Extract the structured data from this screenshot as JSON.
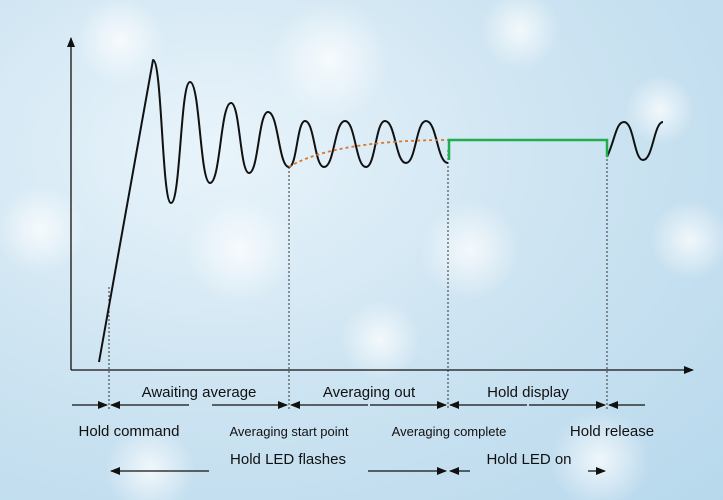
{
  "phases": {
    "awaiting_average": "Awaiting average",
    "averaging_out": "Averaging out",
    "hold_display": "Hold display"
  },
  "events": {
    "hold_command": "Hold command",
    "averaging_start_point": "Averaging start point",
    "averaging_complete": "Averaging complete",
    "hold_release": "Hold release"
  },
  "led": {
    "flashes": "Hold LED flashes",
    "on": "Hold LED on"
  },
  "colors": {
    "signal": "#111111",
    "average_curve": "#d9772e",
    "hold_line": "#1fae4b",
    "arrows": "#111111"
  }
}
